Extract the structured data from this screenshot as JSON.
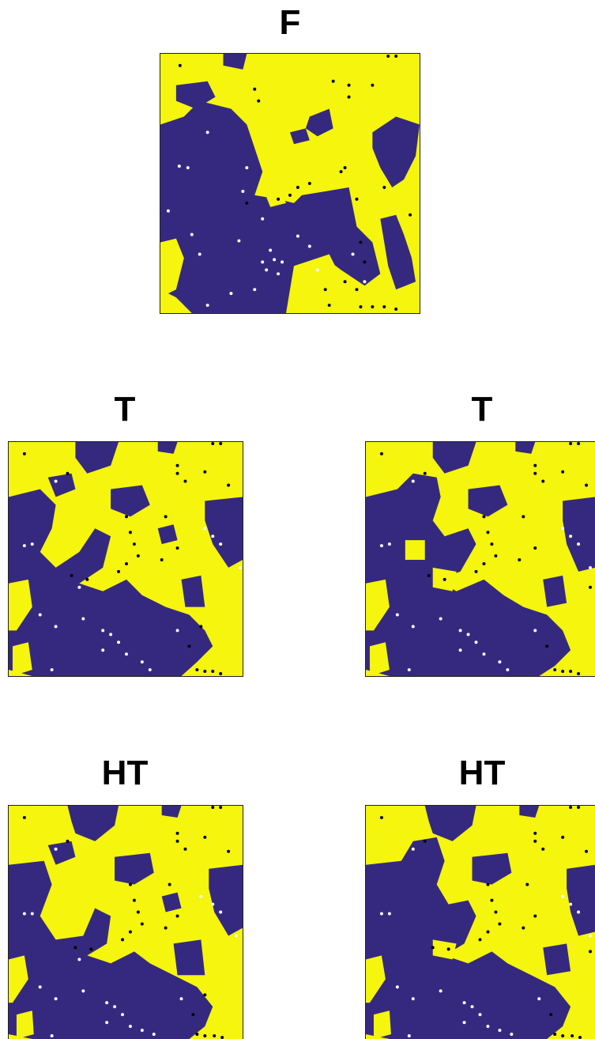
{
  "colors": {
    "phase_a": "#f5f50d",
    "phase_b": "#35297f",
    "marker_dark": "#000000",
    "marker_light": "#ffffff"
  },
  "panels": [
    {
      "title": "F"
    },
    {
      "title": "T"
    },
    {
      "title": "T"
    },
    {
      "title": "HT"
    },
    {
      "title": "HT"
    }
  ]
}
